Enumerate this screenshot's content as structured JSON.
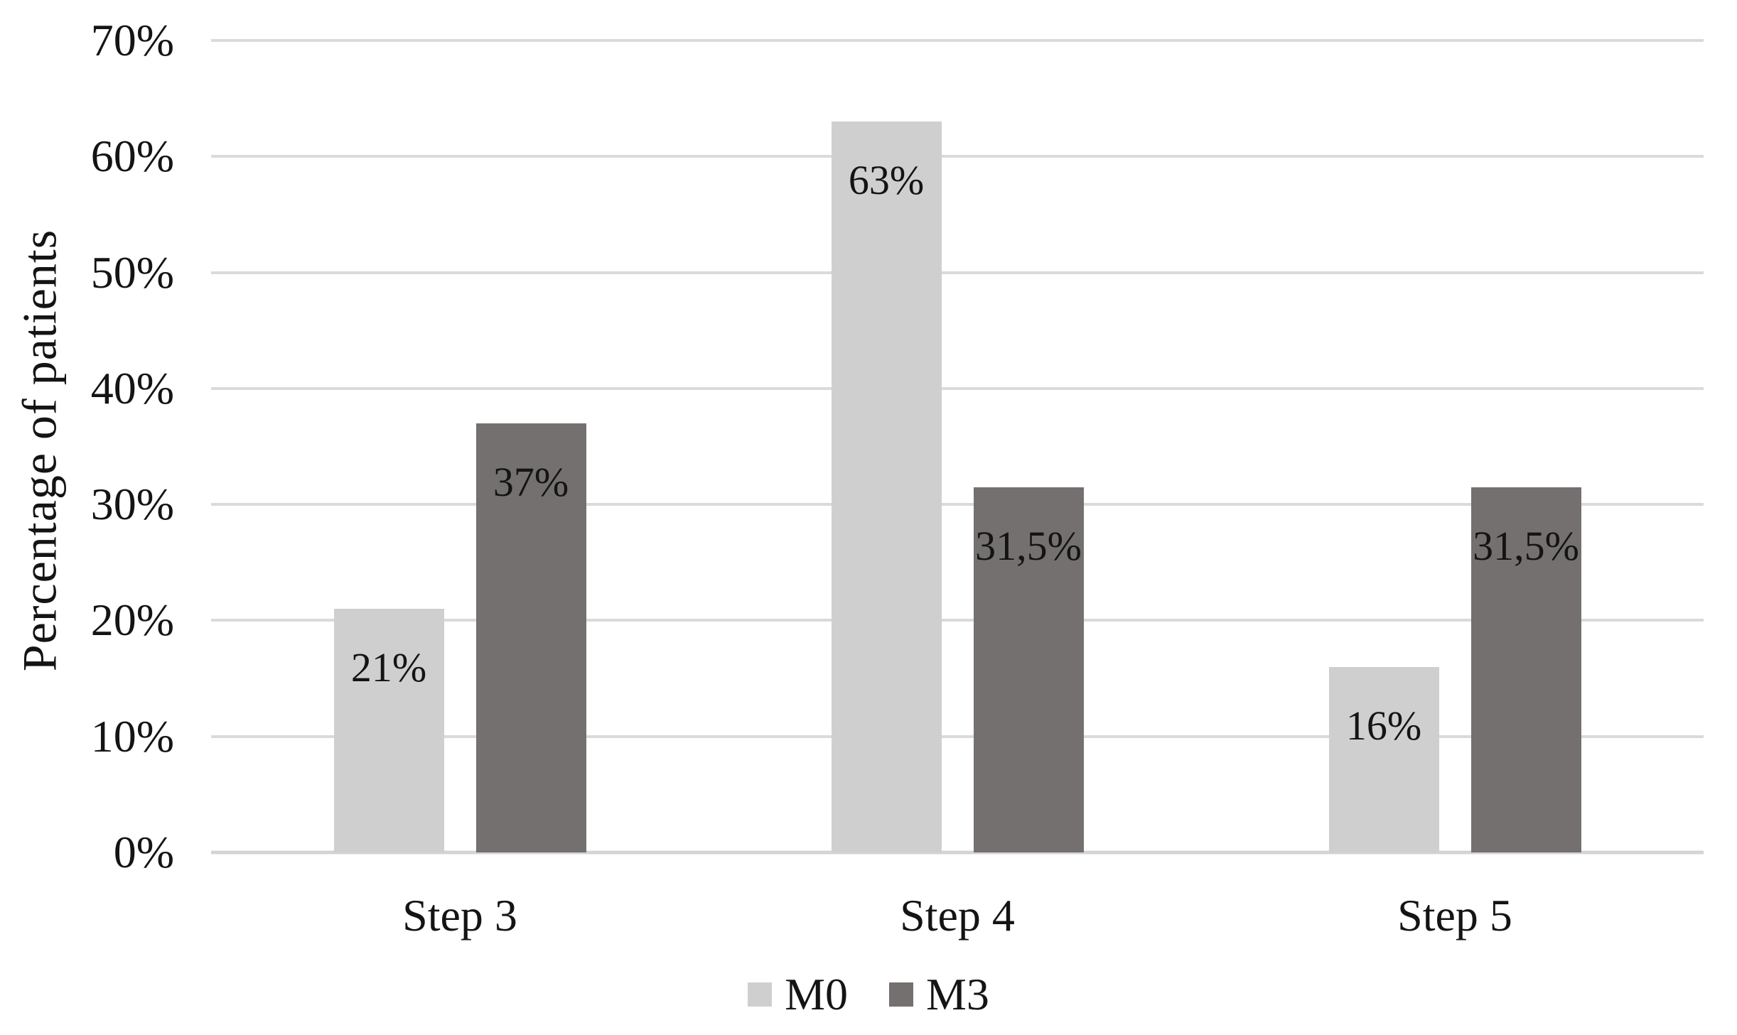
{
  "chart_data": {
    "type": "bar",
    "title": "",
    "xlabel": "",
    "ylabel": "Percentage of patients",
    "categories": [
      "Step 3",
      "Step 4",
      "Step 5"
    ],
    "series": [
      {
        "name": "M0",
        "color": "#d0cfcf",
        "values": [
          21,
          63,
          16
        ],
        "labels": [
          "21%",
          "63%",
          "16%"
        ]
      },
      {
        "name": "M3",
        "color": "#757070",
        "values": [
          37,
          31.5,
          31.5
        ],
        "labels": [
          "37%",
          "31,5%",
          "31,5%"
        ]
      }
    ],
    "y_axis": {
      "min": 0,
      "max": 70,
      "tick_step": 10,
      "tick_values": [
        0,
        10,
        20,
        30,
        40,
        50,
        60,
        70
      ],
      "tick_labels": [
        "0%",
        "10%",
        "20%",
        "30%",
        "40%",
        "50%",
        "60%",
        "70%"
      ]
    },
    "grid": true,
    "legend_position": "bottom",
    "colors": {
      "gridline": "#dbdadb",
      "axis_line": "#d5d4d4",
      "text": "#141414",
      "background": "#ffffff"
    }
  }
}
